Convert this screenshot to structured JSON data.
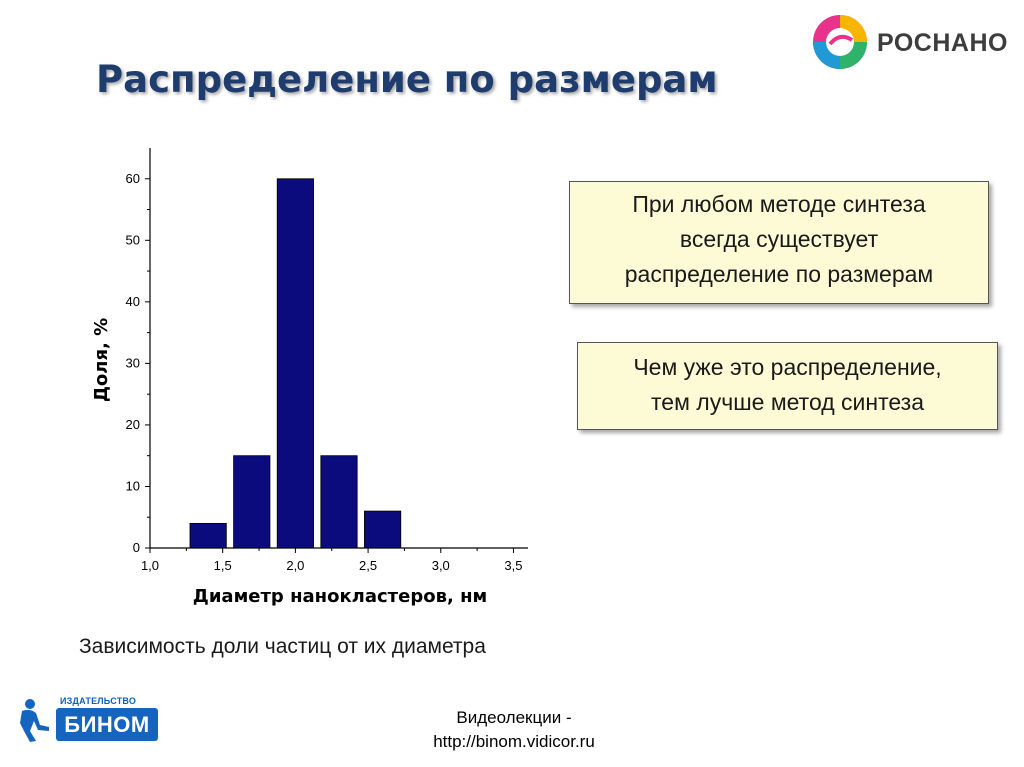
{
  "slide": {
    "title": "Распределение по размерам",
    "caption": "Зависимость доли частиц от их диаметра",
    "footer_line1": "Видеолекции -",
    "footer_line2": "http://binom.vidicor.ru"
  },
  "logos": {
    "rosnano_text": "РОСНАНО",
    "binom_top": "ИЗДАТЕЛЬСТВО",
    "binom_main": "БИНОМ"
  },
  "notes": {
    "note1": [
      "При любом методе синтеза",
      "всегда существует",
      "распределение по размерам"
    ],
    "note2": [
      "Чем уже это распределение,",
      "тем лучше метод синтеза"
    ]
  },
  "colors": {
    "bar": "#0b0b7e",
    "title": "#1f3c6e",
    "note_bg": "#fdfbd6",
    "binom_blue": "#1565c0"
  },
  "chart_data": {
    "type": "bar",
    "xlabel": "Диаметр нанокластеров, нм",
    "ylabel": "Доля, %",
    "xlim": [
      1.0,
      3.6
    ],
    "ylim": [
      0,
      65
    ],
    "x_ticks": [
      "1,0",
      "1,5",
      "2,0",
      "2,5",
      "3,0",
      "3,5"
    ],
    "x_tick_values": [
      1.0,
      1.5,
      2.0,
      2.5,
      3.0,
      3.5
    ],
    "y_ticks": [
      "0",
      "10",
      "20",
      "30",
      "40",
      "50",
      "60"
    ],
    "y_tick_values": [
      0,
      10,
      20,
      30,
      40,
      50,
      60
    ],
    "bar_width": 0.25,
    "bars": [
      {
        "x": 1.4,
        "value": 4
      },
      {
        "x": 1.7,
        "value": 15
      },
      {
        "x": 2.0,
        "value": 60
      },
      {
        "x": 2.3,
        "value": 15
      },
      {
        "x": 2.6,
        "value": 6
      }
    ],
    "grid": false
  }
}
